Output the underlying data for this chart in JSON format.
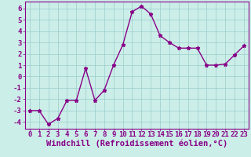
{
  "x": [
    0,
    1,
    2,
    3,
    4,
    5,
    6,
    7,
    8,
    9,
    10,
    11,
    12,
    13,
    14,
    15,
    16,
    17,
    18,
    19,
    20,
    21,
    22,
    23
  ],
  "y": [
    -3,
    -3,
    -4.2,
    -3.7,
    -2.1,
    -2.1,
    0.7,
    -2.1,
    -1.2,
    1.0,
    2.8,
    5.7,
    6.2,
    5.5,
    3.6,
    3.0,
    2.5,
    2.5,
    2.5,
    1.0,
    1.0,
    1.1,
    1.9,
    2.7
  ],
  "line_color": "#880088",
  "marker": "*",
  "marker_color": "#880088",
  "bg_color": "#cceee8",
  "grid_color": "#99cccc",
  "xlabel": "Windchill (Refroidissement éolien,°C)",
  "xlim": [
    -0.5,
    23.5
  ],
  "ylim": [
    -4.6,
    6.6
  ],
  "yticks": [
    -4,
    -3,
    -2,
    -1,
    0,
    1,
    2,
    3,
    4,
    5,
    6
  ],
  "xticks": [
    0,
    1,
    2,
    3,
    4,
    5,
    6,
    7,
    8,
    9,
    10,
    11,
    12,
    13,
    14,
    15,
    16,
    17,
    18,
    19,
    20,
    21,
    22,
    23
  ],
  "tick_color": "#880088",
  "label_color": "#880088",
  "axis_color": "#880088",
  "xlabel_fontsize": 7.5,
  "tick_fontsize": 6.5,
  "linewidth": 1.0,
  "markersize": 3.5
}
